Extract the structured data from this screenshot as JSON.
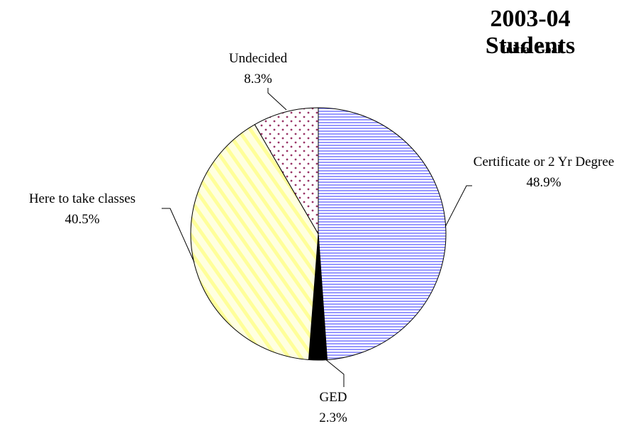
{
  "chart_data": {
    "type": "pie",
    "title": "2003-04 Students",
    "subtitle": "Initial Goal",
    "categories": [
      "Certificate or 2 Yr Degree",
      "GED",
      "Here to take classes",
      "Undecided"
    ],
    "values": [
      48.9,
      2.3,
      40.5,
      8.3
    ],
    "value_labels": [
      "48.9%",
      "2.3%",
      "40.5%",
      "8.3%"
    ],
    "colors": [
      "#9999ff",
      "#000000",
      "#ffff99",
      "#993366"
    ]
  }
}
